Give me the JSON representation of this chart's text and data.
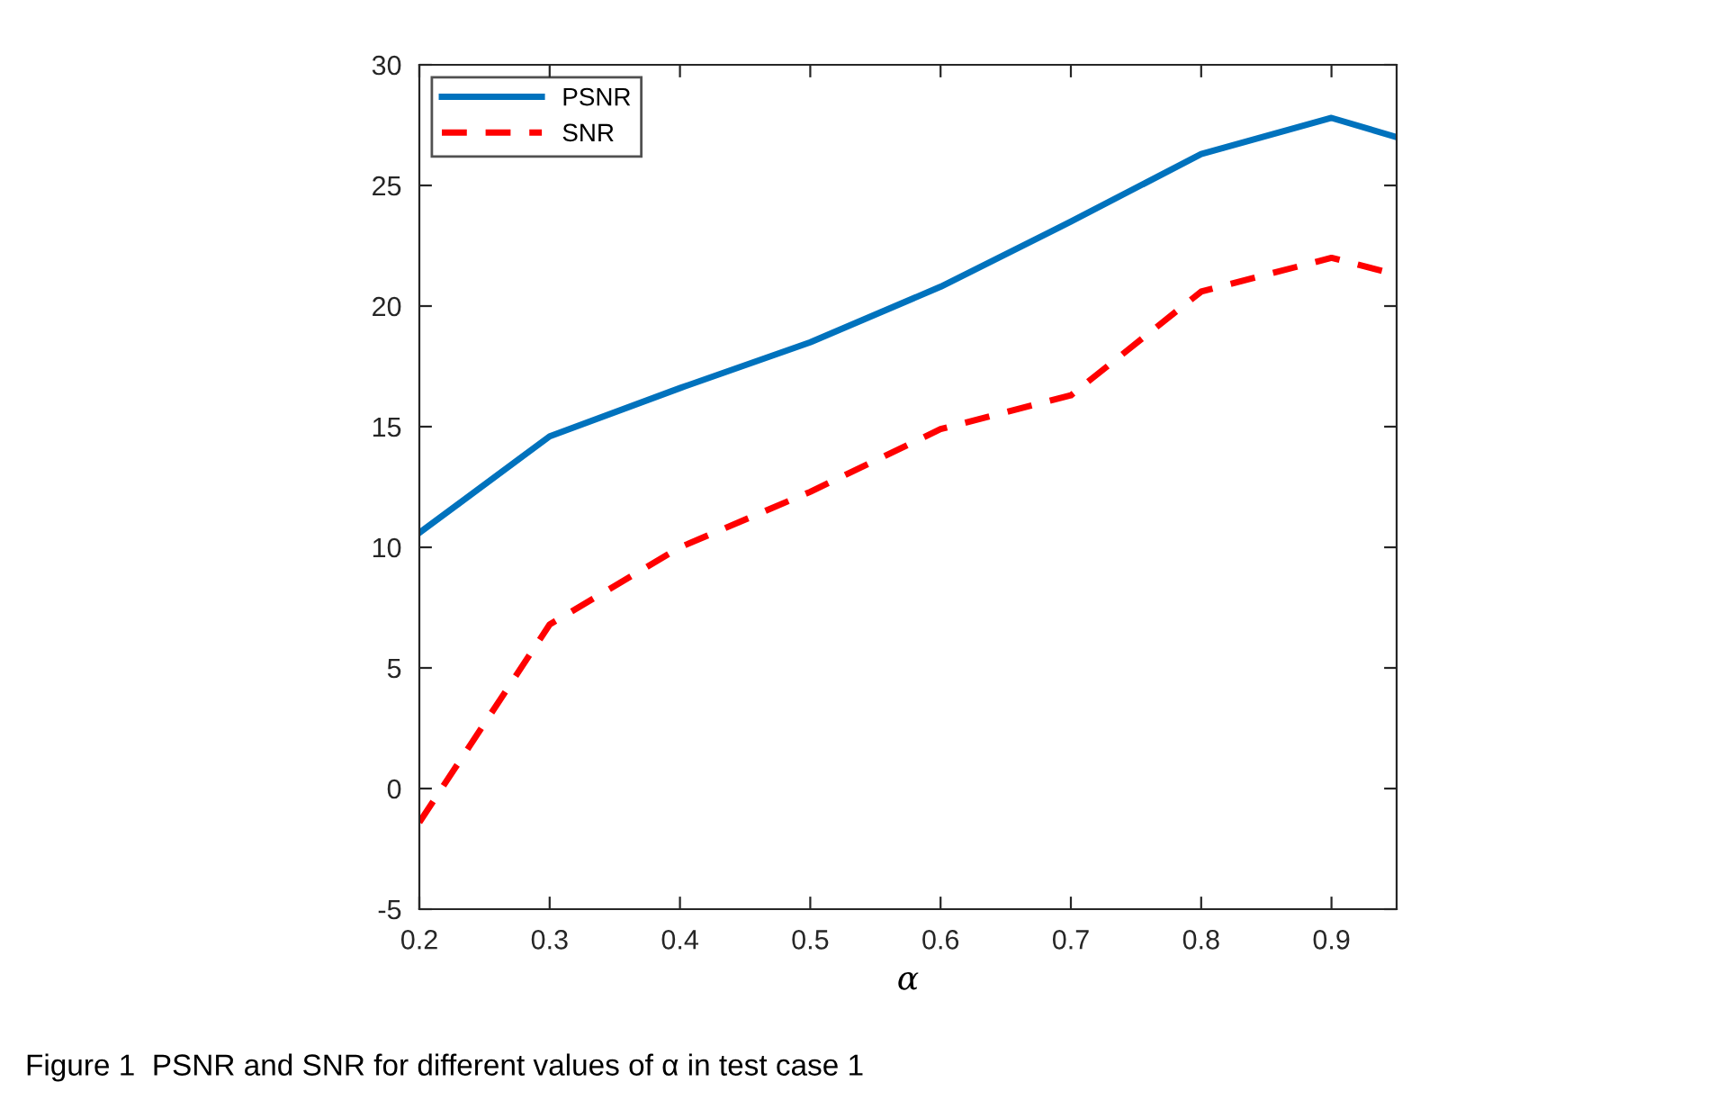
{
  "chart_data": {
    "type": "line",
    "xlabel": "α",
    "x": [
      0.2,
      0.3,
      0.4,
      0.5,
      0.6,
      0.7,
      0.8,
      0.9,
      0.95
    ],
    "series": [
      {
        "name": "PSNR",
        "color": "#0072bd",
        "line_style": "solid",
        "values": [
          10.6,
          14.6,
          16.6,
          18.5,
          20.8,
          23.5,
          26.3,
          27.8,
          27.0
        ]
      },
      {
        "name": "SNR",
        "color": "#ff0000",
        "line_style": "dashed",
        "values": [
          -1.4,
          6.8,
          10.0,
          12.3,
          14.9,
          16.3,
          20.6,
          22.0,
          21.3
        ]
      }
    ],
    "xlim": [
      0.2,
      0.95
    ],
    "xticks": [
      0.2,
      0.3,
      0.4,
      0.5,
      0.6,
      0.7,
      0.8,
      0.9
    ],
    "ylim": [
      -5,
      30
    ],
    "yticks": [
      -5,
      0,
      5,
      10,
      15,
      20,
      25,
      30
    ],
    "grid": false,
    "legend": "top left",
    "marker": "none",
    "annotations": [
      "Figure 1  PSNR and SNR for different values of α in test case 1"
    ]
  }
}
